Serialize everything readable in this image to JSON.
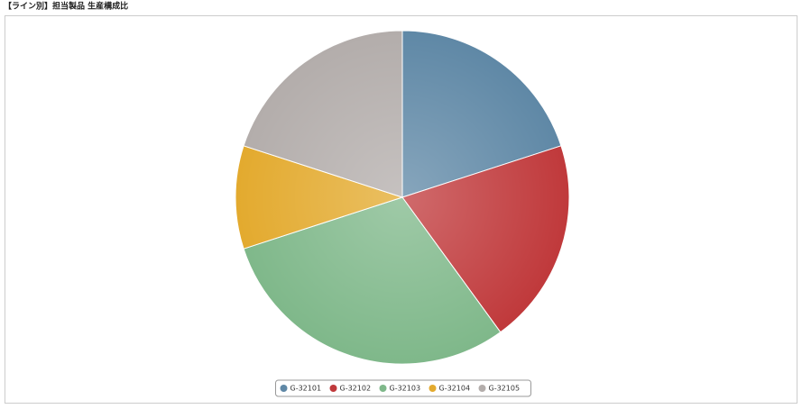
{
  "chart_data": {
    "type": "pie",
    "title": "【ライン別】担当製品 生産構成比",
    "categories": [
      "G-32101",
      "G-32102",
      "G-32103",
      "G-32104",
      "G-32105"
    ],
    "values": [
      20,
      20,
      30,
      10,
      20
    ],
    "colors": [
      "#5f88a6",
      "#c0393b",
      "#7fb88a",
      "#e3aa2e",
      "#b3adab"
    ],
    "legend": "bottom"
  }
}
